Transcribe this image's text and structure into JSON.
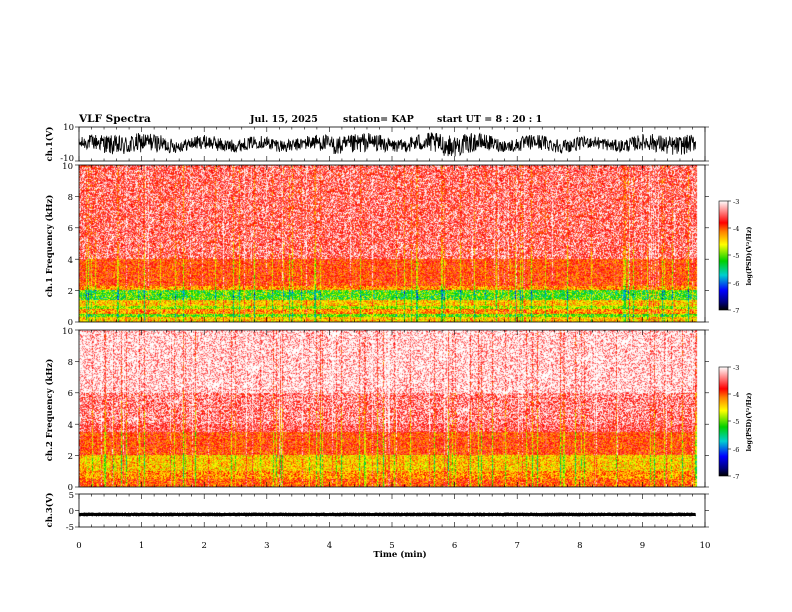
{
  "header": {
    "title": "VLF Spectra",
    "date": "Jul. 15, 2025",
    "station": "station= KAP",
    "start": "start UT =  8 : 20 : 1"
  },
  "chart_data": {
    "type": "heatmap",
    "title": "VLF Spectra",
    "xlabel": "Time (min)",
    "xlim": [
      0,
      10
    ],
    "x_ticks": [
      "0",
      "1",
      "2",
      "3",
      "4",
      "5",
      "6",
      "7",
      "8",
      "9",
      "10"
    ],
    "data_end_min": 9.85,
    "panels": [
      {
        "name": "ch1-waveform",
        "type": "line",
        "ylabel": "ch.1(V)",
        "ylim": [
          -10,
          10
        ],
        "y_ticks": [
          "10",
          "-10"
        ],
        "trace_amplitude_v": 6.5
      },
      {
        "name": "ch1-spectrogram",
        "type": "heatmap",
        "ylabel": "ch.1 Frequency (kHz)",
        "ylim": [
          0,
          10
        ],
        "y_ticks": [
          "0",
          "2",
          "4",
          "6",
          "8",
          "10"
        ],
        "colorbar": {
          "label": "log(PSD)(V²/Hz)",
          "range": [
            -7,
            -3
          ],
          "ticks": [
            "-3",
            "-4",
            "-5",
            "-6",
            "-7"
          ]
        },
        "bands_khz": [
          {
            "from": 0.0,
            "to": 0.3,
            "level": -4.4
          },
          {
            "from": 0.3,
            "to": 0.5,
            "level": -5.0
          },
          {
            "from": 0.5,
            "to": 0.8,
            "level": -4.2
          },
          {
            "from": 0.8,
            "to": 1.0,
            "level": -4.8
          },
          {
            "from": 1.0,
            "to": 1.4,
            "level": -4.4
          },
          {
            "from": 1.4,
            "to": 2.0,
            "level": -4.9
          },
          {
            "from": 2.0,
            "to": 2.3,
            "level": -4.2
          },
          {
            "from": 2.3,
            "to": 4.0,
            "level": -3.9
          },
          {
            "from": 4.0,
            "to": 10.0,
            "level": -3.6
          }
        ]
      },
      {
        "name": "ch2-spectrogram",
        "type": "heatmap",
        "ylabel": "ch.2 Frequency (kHz)",
        "ylim": [
          0,
          10
        ],
        "y_ticks": [
          "0",
          "2",
          "4",
          "6",
          "8",
          "10"
        ],
        "colorbar": {
          "label": "log(PSD)(V²/Hz)",
          "range": [
            -7,
            -3
          ],
          "ticks": [
            "-3",
            "-4",
            "-5",
            "-6",
            "-7"
          ]
        },
        "bands_khz": [
          {
            "from": 0.0,
            "to": 0.5,
            "level": -4.0
          },
          {
            "from": 0.5,
            "to": 1.0,
            "level": -4.2
          },
          {
            "from": 1.0,
            "to": 2.0,
            "level": -4.4
          },
          {
            "from": 2.0,
            "to": 3.5,
            "level": -3.9
          },
          {
            "from": 3.5,
            "to": 6.0,
            "level": -3.5
          },
          {
            "from": 6.0,
            "to": 10.0,
            "level": -3.2
          }
        ]
      },
      {
        "name": "ch3-waveform",
        "type": "line",
        "ylabel": "ch.3(V)",
        "ylim": [
          -5,
          5
        ],
        "y_ticks": [
          "5",
          "0",
          "-5"
        ],
        "trace_center_v": -1.2,
        "trace_amplitude_v": 0.6
      }
    ]
  }
}
